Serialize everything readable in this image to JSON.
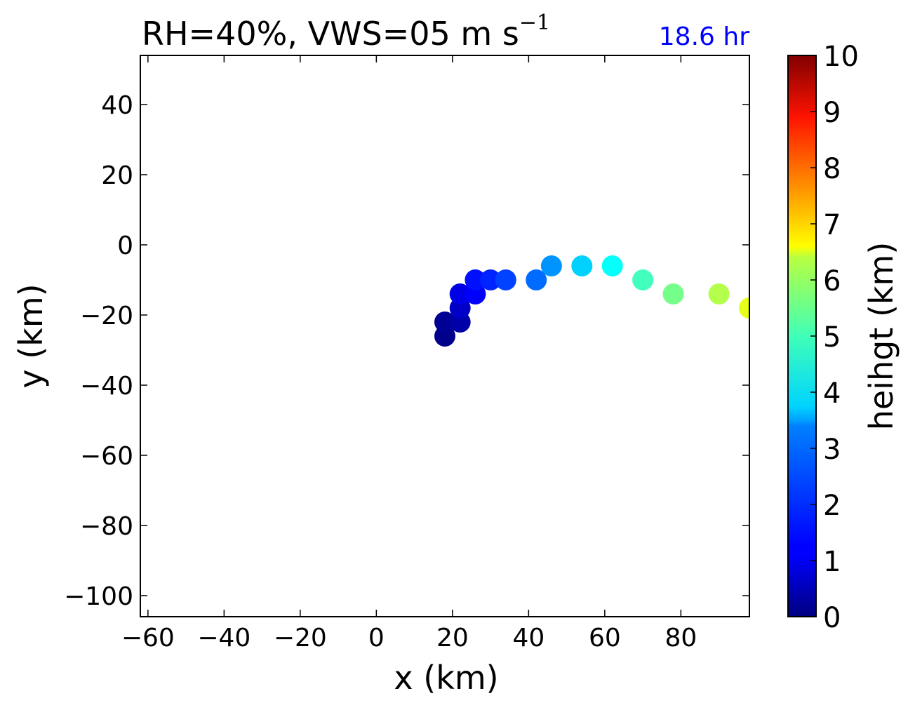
{
  "title": {
    "main": "RH=40%, VWS=05 m s",
    "superscript": "−1",
    "time_label": "18.6 hr",
    "time_color": "#0000ff"
  },
  "chart_data": {
    "type": "scatter",
    "xlabel": "x (km)",
    "ylabel": "y (km)",
    "xlim": [
      -62,
      98
    ],
    "ylim": [
      -106,
      54
    ],
    "xticks": [
      -60,
      -40,
      -20,
      0,
      20,
      40,
      60,
      80
    ],
    "yticks": [
      -100,
      -80,
      -60,
      -40,
      -20,
      0,
      20,
      40
    ],
    "grid": false,
    "colorbar": {
      "label": "heihgt (km)",
      "colormap": "jet",
      "range": [
        0,
        10
      ],
      "ticks": [
        0,
        1,
        2,
        3,
        4,
        5,
        6,
        7,
        8,
        9,
        10
      ]
    },
    "points": [
      {
        "x": 18,
        "y": -26,
        "height": 0.1
      },
      {
        "x": 18,
        "y": -22,
        "height": 0.2
      },
      {
        "x": 22,
        "y": -22,
        "height": 0.4
      },
      {
        "x": 22,
        "y": -18,
        "height": 0.7
      },
      {
        "x": 22,
        "y": -14,
        "height": 1.0
      },
      {
        "x": 26,
        "y": -14,
        "height": 1.2
      },
      {
        "x": 26,
        "y": -10,
        "height": 1.4
      },
      {
        "x": 30,
        "y": -10,
        "height": 1.6
      },
      {
        "x": 34,
        "y": -10,
        "height": 1.9
      },
      {
        "x": 42,
        "y": -10,
        "height": 2.3
      },
      {
        "x": 46,
        "y": -6,
        "height": 2.7
      },
      {
        "x": 54,
        "y": -6,
        "height": 3.3
      },
      {
        "x": 62,
        "y": -6,
        "height": 3.8
      },
      {
        "x": 70,
        "y": -10,
        "height": 4.4
      },
      {
        "x": 78,
        "y": -14,
        "height": 4.9
      },
      {
        "x": 90,
        "y": -14,
        "height": 5.5
      },
      {
        "x": 98,
        "y": -18,
        "height": 6.0
      }
    ]
  }
}
